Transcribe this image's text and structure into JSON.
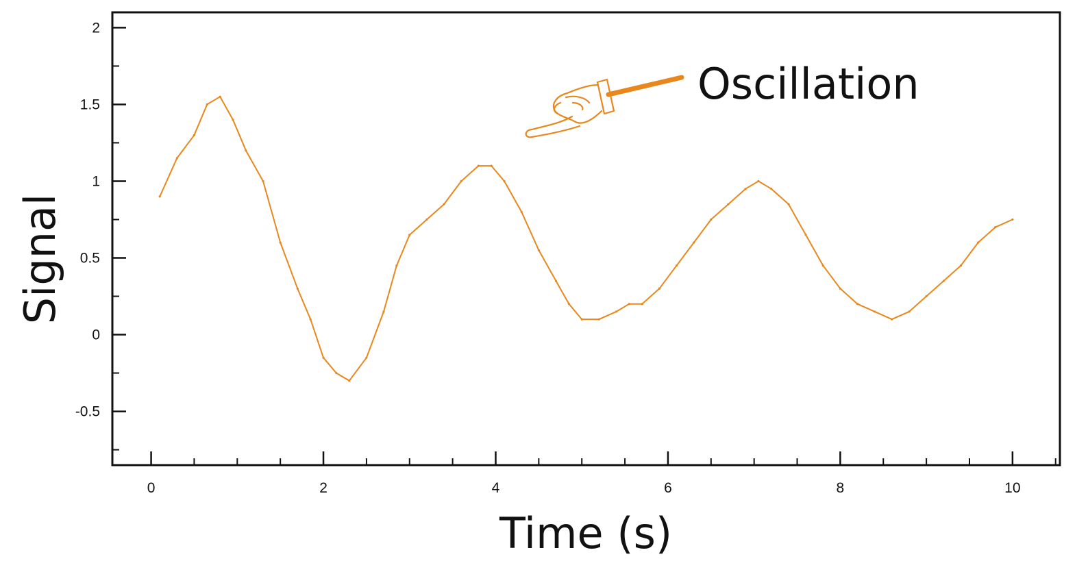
{
  "colors": {
    "series": "#E8881C",
    "axis": "#111111",
    "background": "#ffffff"
  },
  "chart_data": {
    "type": "line",
    "title": "",
    "xlabel": "Time (s)",
    "ylabel": "Signal",
    "xlim": [
      -0.45,
      10.55
    ],
    "ylim": [
      -0.85,
      2.1
    ],
    "x_ticks": [
      0,
      2,
      4,
      6,
      8,
      10
    ],
    "x_tick_labels": [
      "0",
      "2",
      "4",
      "6",
      "8",
      "10"
    ],
    "y_ticks": [
      -0.5,
      0,
      0.5,
      1,
      1.5,
      2
    ],
    "y_tick_labels": [
      "-0.5",
      "0",
      "0.5",
      "1",
      "1.5",
      "2"
    ],
    "grid": false,
    "legend": "none",
    "annotation": {
      "text": "Oscillation",
      "icon": "pointing-hand-icon",
      "points_to": "peak near t = 4 s"
    },
    "series": [
      {
        "color": "#E8881C",
        "x": [
          0.1,
          0.3,
          0.5,
          0.65,
          0.8,
          0.95,
          1.1,
          1.3,
          1.5,
          1.7,
          1.85,
          2.0,
          2.15,
          2.3,
          2.5,
          2.7,
          2.85,
          3.0,
          3.2,
          3.4,
          3.6,
          3.8,
          3.95,
          4.1,
          4.3,
          4.5,
          4.7,
          4.85,
          5.0,
          5.2,
          5.4,
          5.55,
          5.7,
          5.9,
          6.1,
          6.3,
          6.5,
          6.7,
          6.9,
          7.05,
          7.2,
          7.4,
          7.6,
          7.8,
          8.0,
          8.2,
          8.4,
          8.6,
          8.8,
          9.0,
          9.2,
          9.4,
          9.6,
          9.8,
          10.0
        ],
        "y": [
          0.9,
          1.15,
          1.3,
          1.5,
          1.55,
          1.4,
          1.2,
          1.0,
          0.6,
          0.3,
          0.1,
          -0.15,
          -0.25,
          -0.3,
          -0.15,
          0.15,
          0.45,
          0.65,
          0.75,
          0.85,
          1.0,
          1.1,
          1.1,
          1.0,
          0.8,
          0.55,
          0.35,
          0.2,
          0.1,
          0.1,
          0.15,
          0.2,
          0.2,
          0.3,
          0.45,
          0.6,
          0.75,
          0.85,
          0.95,
          1.0,
          0.95,
          0.85,
          0.65,
          0.45,
          0.3,
          0.2,
          0.15,
          0.1,
          0.15,
          0.25,
          0.35,
          0.45,
          0.6,
          0.7,
          0.75
        ]
      }
    ]
  }
}
